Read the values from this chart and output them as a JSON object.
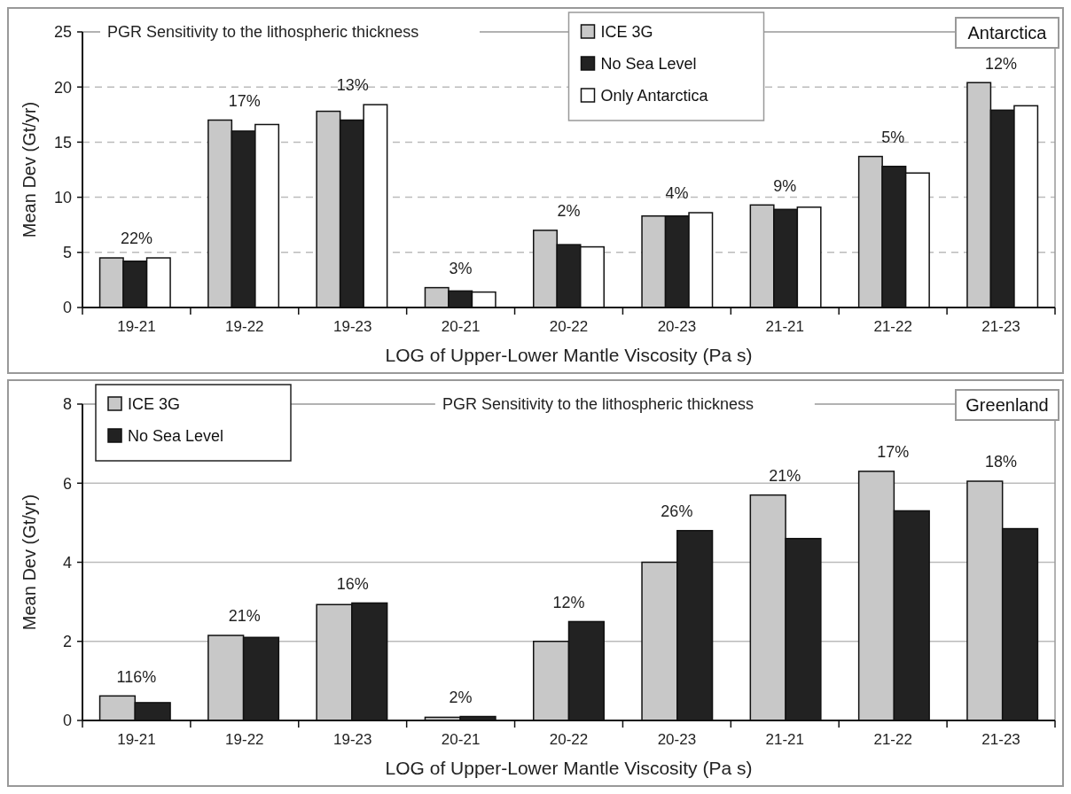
{
  "chart_data": [
    {
      "type": "bar",
      "title": "PGR Sensitivity to the lithospheric thickness",
      "subtitle": "Antarctica",
      "xlabel": "LOG of Upper-Lower Mantle Viscosity (Pa s)",
      "ylabel": "Mean Dev (Gt/yr)",
      "categories": [
        "19-21",
        "19-22",
        "19-23",
        "20-21",
        "20-22",
        "20-23",
        "21-21",
        "21-22",
        "21-23"
      ],
      "series": [
        {
          "name": "ICE 3G",
          "color": "#c8c8c8",
          "values": [
            4.5,
            17.0,
            17.8,
            1.8,
            7.0,
            8.3,
            9.3,
            13.7,
            20.4
          ]
        },
        {
          "name": "No Sea Level",
          "color": "#222222",
          "values": [
            4.2,
            16.0,
            17.0,
            1.5,
            5.7,
            8.3,
            8.9,
            12.8,
            17.9
          ]
        },
        {
          "name": "Only Antarctica",
          "color": "#ffffff",
          "values": [
            4.5,
            16.6,
            18.4,
            1.4,
            5.5,
            8.6,
            9.1,
            12.2,
            18.3
          ]
        }
      ],
      "ylim": [
        0,
        25
      ],
      "yticks": [
        0,
        5,
        10,
        15,
        20,
        25
      ],
      "grid": "y",
      "legend": "top",
      "annotations": [
        "22%",
        "17%",
        "13%",
        "3%",
        "2%",
        "4%",
        "9%",
        "5%",
        "12%"
      ]
    },
    {
      "type": "bar",
      "title": "PGR Sensitivity to the lithospheric thickness",
      "subtitle": "Greenland",
      "xlabel": "LOG of Upper-Lower Mantle Viscosity (Pa s)",
      "ylabel": "Mean Dev (Gt/yr)",
      "categories": [
        "19-21",
        "19-22",
        "19-23",
        "20-21",
        "20-22",
        "20-23",
        "21-21",
        "21-22",
        "21-23"
      ],
      "series": [
        {
          "name": "ICE 3G",
          "color": "#c8c8c8",
          "values": [
            0.62,
            2.15,
            2.93,
            0.08,
            2.0,
            4.0,
            5.7,
            6.3,
            6.05
          ]
        },
        {
          "name": "No Sea Level",
          "color": "#222222",
          "values": [
            0.45,
            2.1,
            2.97,
            0.1,
            2.5,
            4.8,
            4.6,
            5.3,
            4.85
          ]
        }
      ],
      "ylim": [
        0,
        8
      ],
      "yticks": [
        0,
        2,
        4,
        6,
        8
      ],
      "grid": "y",
      "legend": "top left",
      "annotations": [
        "116%",
        "21%",
        "16%",
        "2%",
        "12%",
        "26%",
        "21%",
        "17%",
        "18%"
      ]
    }
  ]
}
